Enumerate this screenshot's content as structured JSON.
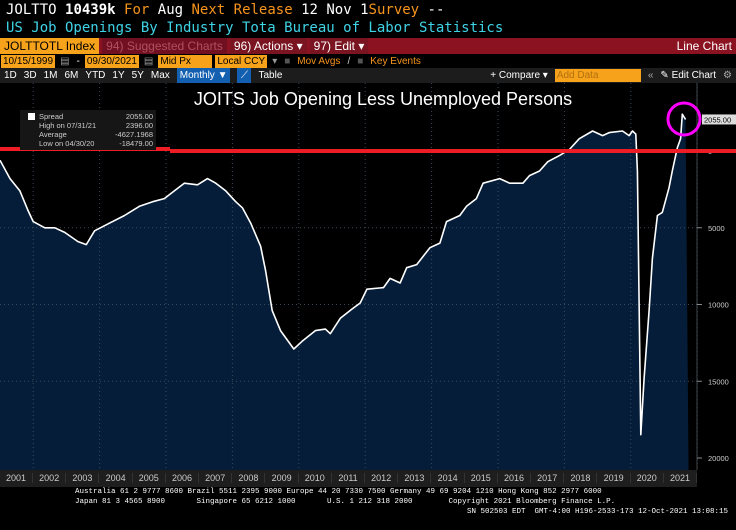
{
  "header": {
    "ticker": "JOLTTO",
    "value": "10439k",
    "for_label": "For",
    "period": "Aug",
    "next_label": "Next Release",
    "next_date": "12 Nov 1",
    "survey_label": "Survey",
    "survey_value": "--",
    "description": "US Job Openings By Industry Tota Bureau of Labor Statistics"
  },
  "toolbar": {
    "security": "JOLTTOTL Index",
    "suggested": "94) Suggested Charts",
    "actions": "96) Actions ▾",
    "edit": "97) Edit ▾",
    "chart_type": "Line Chart"
  },
  "range": {
    "start": "10/15/1999",
    "end": "09/30/2021",
    "price": "Mid Px",
    "currency": "Local CCY",
    "mov_avgs": "Mov Avgs",
    "key_events": "Key Events"
  },
  "periods": [
    "1D",
    "3D",
    "1M",
    "6M",
    "YTD",
    "1Y",
    "5Y",
    "Max"
  ],
  "frequency": "Monthly ▼",
  "table_label": "Table",
  "compare_label": "+ Compare ▾",
  "add_data_placeholder": "Add Data",
  "edit_chart": "Edit Chart",
  "legend": {
    "series": "Spread",
    "series_value": "2055.00",
    "high_label": "High on 07/31/21",
    "high_value": "2396.00",
    "avg_label": "Average",
    "avg_value": "-4627.1968",
    "low_label": "Low on 04/30/20",
    "low_value": "-18479.00"
  },
  "colors": {
    "fill": "#051d38",
    "line": "#ffffff",
    "hline": "#ee1c25",
    "circle": "#ff00ff",
    "toolbar": "#8b1220",
    "accent": "#f7a21b"
  },
  "chart_data": {
    "type": "area",
    "title": "JOITS Job Opening Less Unemployed Persons",
    "series_name": "Spread",
    "last_value_label": "2055.00",
    "ylim": [
      -20000,
      3000
    ],
    "yticks": [
      0,
      -5000,
      -10000,
      -15000,
      -20000
    ],
    "ytick_labels": [
      "0",
      "5000",
      "10000",
      "15000",
      "20000"
    ],
    "xlim": [
      2001,
      2022
    ],
    "xtick_labels": [
      "2001",
      "2002",
      "2003",
      "2004",
      "2005",
      "2006",
      "2007",
      "2008",
      "2009",
      "2010",
      "2011",
      "2012",
      "2013",
      "2014",
      "2015",
      "2016",
      "2017",
      "2018",
      "2019",
      "2020",
      "2021"
    ],
    "reference_line": 0,
    "x": [
      2001.0,
      2001.3,
      2001.6,
      2001.85,
      2002.0,
      2002.35,
      2002.65,
      2002.95,
      2003.35,
      2003.6,
      2003.85,
      2004.3,
      2004.75,
      2005.2,
      2005.6,
      2005.95,
      2006.25,
      2006.55,
      2006.95,
      2007.25,
      2007.5,
      2007.8,
      2008.1,
      2008.3,
      2008.55,
      2008.85,
      2009.0,
      2009.2,
      2009.45,
      2009.85,
      2010.1,
      2010.5,
      2010.8,
      2010.95,
      2011.25,
      2011.6,
      2011.85,
      2012.05,
      2012.55,
      2012.75,
      2013.05,
      2013.25,
      2013.55,
      2013.95,
      2014.25,
      2014.45,
      2014.85,
      2015.05,
      2015.35,
      2015.55,
      2016.05,
      2016.35,
      2016.75,
      2016.95,
      2017.25,
      2017.5,
      2017.85,
      2018.15,
      2018.45,
      2018.85,
      2019.15,
      2019.35,
      2019.75,
      2019.95,
      2020.05,
      2020.15,
      2020.2,
      2020.3,
      2020.4,
      2020.55,
      2020.65,
      2020.8,
      2020.95,
      2021.15,
      2021.25,
      2021.4,
      2021.5,
      2021.55,
      2021.65
    ],
    "y": [
      -600,
      -1800,
      -2600,
      -3900,
      -4600,
      -5000,
      -5000,
      -5300,
      -5900,
      -6100,
      -5200,
      -4700,
      -4200,
      -3600,
      -3300,
      -3100,
      -2600,
      -2100,
      -2200,
      -1800,
      -2100,
      -2600,
      -3300,
      -3700,
      -4700,
      -6200,
      -7800,
      -10400,
      -11700,
      -12900,
      -12400,
      -11700,
      -11600,
      -11900,
      -10900,
      -10300,
      -9900,
      -9000,
      -8900,
      -8300,
      -8600,
      -7600,
      -7400,
      -6300,
      -6000,
      -4600,
      -4200,
      -3600,
      -3100,
      -2100,
      -1800,
      -2100,
      -2100,
      -1600,
      -1300,
      -700,
      -300,
      100,
      800,
      1300,
      1000,
      1200,
      1300,
      1000,
      1300,
      1100,
      -1300,
      -18479,
      -14800,
      -10400,
      -7000,
      -4200,
      -4000,
      -2400,
      -1300,
      200,
      800,
      2396,
      2055
    ]
  },
  "footer": {
    "line1": "Australia 61 2 9777 8600 Brazil 5511 2395 9000 Europe 44 20 7330 7500 Germany 49 69 9204 1210 Hong Kong 852 2977 6000",
    "line2": "Japan 81 3 4565 8900       Singapore 65 6212 1000       U.S. 1 212 318 2000        Copyright 2021 Bloomberg Finance L.P.",
    "line3": "SN 502503 EDT  GMT-4:00 H196-2533-173 12-Oct-2021 13:08:15"
  }
}
